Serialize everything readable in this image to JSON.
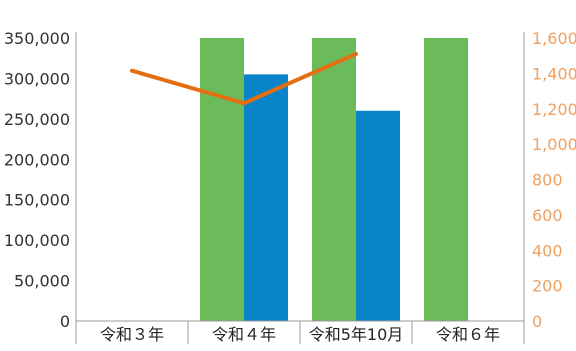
{
  "chart_data": {
    "type": "bar",
    "categories": [
      "令和３年",
      "令和４年",
      "令和5年10月",
      "令和６年"
    ],
    "series": [
      {
        "kind": "bar",
        "axis": "left",
        "color": "#6cbb5a",
        "values": [
          null,
          350000,
          350000,
          350000
        ]
      },
      {
        "kind": "bar",
        "axis": "left",
        "color": "#0a84c8",
        "values": [
          null,
          305000,
          260000,
          null
        ]
      },
      {
        "kind": "line",
        "axis": "right",
        "color": "#e36f12",
        "values": [
          1415,
          1231,
          1510,
          null
        ]
      }
    ],
    "left_axis": {
      "min": 0,
      "max": 350000,
      "step": 50000,
      "tick_labels": [
        "0",
        "50,000",
        "100,000",
        "150,000",
        "200,000",
        "250,000",
        "300,000",
        "350,000"
      ]
    },
    "right_axis": {
      "min": 0,
      "max": 1600,
      "step": 200,
      "color": "#f0a060",
      "tick_labels": [
        "0",
        "200",
        "400",
        "600",
        "800",
        "1,000",
        "1,200",
        "1,400",
        "1,600"
      ]
    },
    "grid": false,
    "legend": "none"
  }
}
